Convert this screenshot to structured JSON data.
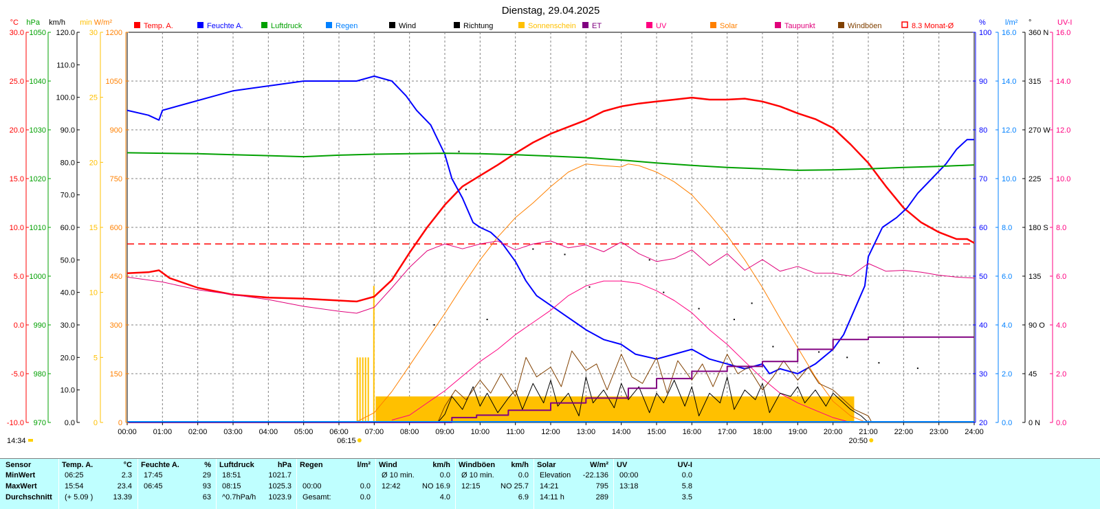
{
  "chart_data": {
    "type": "line",
    "title": "Dienstag, 29.04.2025",
    "x_ticks": [
      "00:00",
      "01:00",
      "02:00",
      "03:00",
      "04:00",
      "05:00",
      "06:00",
      "07:00",
      "08:00",
      "09:00",
      "10:00",
      "11:00",
      "12:00",
      "13:00",
      "14:00",
      "15:00",
      "16:00",
      "17:00",
      "18:00",
      "19:00",
      "20:00",
      "21:00",
      "22:00",
      "23:00",
      "24:00"
    ],
    "xlim": [
      0,
      24
    ],
    "grid": true,
    "legend_position": "top",
    "legend": [
      {
        "label": "Temp. A.",
        "color": "#ff0000",
        "marker": "box"
      },
      {
        "label": "Feuchte A.",
        "color": "#0000ff",
        "marker": "box"
      },
      {
        "label": "Luftdruck",
        "color": "#00a000",
        "marker": "box"
      },
      {
        "label": "Regen",
        "color": "#0080ff",
        "marker": "box"
      },
      {
        "label": "Wind",
        "color": "#000000",
        "marker": "box"
      },
      {
        "label": "Richtung",
        "color": "#000000",
        "marker": "box"
      },
      {
        "label": "Sonnenschein",
        "color": "#ffc000",
        "marker": "box"
      },
      {
        "label": "ET",
        "color": "#800080",
        "marker": "box"
      },
      {
        "label": "UV",
        "color": "#ff0080",
        "marker": "box"
      },
      {
        "label": "Solar",
        "color": "#ff8000",
        "marker": "box"
      },
      {
        "label": "Taupunkt",
        "color": "#e0007a",
        "marker": "box"
      },
      {
        "label": "Windböen",
        "color": "#804000",
        "marker": "box"
      },
      {
        "label": "8.3 Monat-Ø",
        "color": "#ff0000",
        "marker": "outline"
      }
    ],
    "axes": [
      {
        "id": "temp",
        "unit": "°C",
        "color": "#ff0000",
        "side": "left",
        "ticks": [
          "30.0",
          "25.0",
          "20.0",
          "15.0",
          "10.0",
          "5.0",
          "0.0",
          "-5.0",
          "-10.0"
        ]
      },
      {
        "id": "press",
        "unit": "hPa",
        "color": "#00a000",
        "side": "left",
        "ticks": [
          "1050",
          "1040",
          "1030",
          "1020",
          "1010",
          "1000",
          "990",
          "980",
          "970"
        ]
      },
      {
        "id": "wind",
        "unit": "km/h",
        "color": "#000000",
        "side": "left",
        "ticks": [
          "120.0",
          "110.0",
          "100.0",
          "90.0",
          "80.0",
          "70.0",
          "60.0",
          "50.0",
          "40.0",
          "30.0",
          "20.0",
          "10.0",
          "0.0"
        ]
      },
      {
        "id": "sun",
        "unit": "min",
        "color": "#ffc000",
        "side": "left",
        "ticks": [
          "30",
          "25",
          "20",
          "15",
          "10",
          "5",
          "0"
        ]
      },
      {
        "id": "solar",
        "unit": "W/m²",
        "color": "#ff8000",
        "side": "left",
        "ticks": [
          "1200",
          "1050",
          "900",
          "750",
          "600",
          "450",
          "300",
          "150",
          "0"
        ]
      },
      {
        "id": "hum",
        "unit": "%",
        "color": "#0000ff",
        "side": "right",
        "ticks": [
          "100",
          "90",
          "80",
          "70",
          "60",
          "50",
          "40",
          "30",
          "20"
        ]
      },
      {
        "id": "rain",
        "unit": "l/m²",
        "color": "#0080ff",
        "side": "right",
        "ticks": [
          "16.0",
          "14.0",
          "12.0",
          "10.0",
          "8.0",
          "6.0",
          "4.0",
          "2.0",
          "0.0"
        ]
      },
      {
        "id": "dir",
        "unit": "°",
        "color": "#000000",
        "side": "right",
        "ticks": [
          "360 N",
          "315",
          "270 W",
          "225",
          "180 S",
          "135",
          "90 O",
          "45",
          "0 N"
        ]
      },
      {
        "id": "uv",
        "unit": "UV-I",
        "color": "#ff0080",
        "side": "right",
        "ticks": [
          "16.0",
          "14.0",
          "12.0",
          "10.0",
          "8.0",
          "6.0",
          "4.0",
          "2.0",
          "0.0"
        ]
      }
    ],
    "series": [
      {
        "name": "Temp. A.",
        "axis": "temp",
        "color": "#ff0000",
        "width": 2.5,
        "x": [
          0,
          0.6,
          0.9,
          1.2,
          2,
          3,
          4,
          5,
          5.5,
          6,
          6.5,
          7,
          7.5,
          8,
          8.5,
          9,
          9.5,
          10,
          10.5,
          11,
          11.5,
          12,
          12.5,
          13,
          13.5,
          14,
          14.5,
          15,
          15.5,
          16,
          16.5,
          17,
          17.5,
          18,
          18.5,
          19,
          19.5,
          20,
          20.5,
          21,
          21.5,
          22,
          22.5,
          23,
          23.5,
          23.8,
          24
        ],
        "y": [
          5.3,
          5.4,
          5.6,
          4.8,
          3.8,
          3.1,
          2.8,
          2.7,
          2.6,
          2.5,
          2.4,
          2.9,
          4.6,
          7.4,
          10,
          12.3,
          14.2,
          15.3,
          16.4,
          17.6,
          18.7,
          19.6,
          20.3,
          21,
          21.9,
          22.4,
          22.7,
          22.9,
          23.1,
          23.3,
          23.1,
          23.1,
          23.2,
          22.9,
          22.4,
          21.7,
          21.1,
          20.2,
          18.5,
          16.6,
          14.2,
          12,
          10.5,
          9.5,
          8.8,
          8.8,
          8.4
        ]
      },
      {
        "name": "Feuchte A.",
        "axis": "hum",
        "color": "#0000ff",
        "width": 2,
        "x": [
          0,
          0.6,
          0.9,
          1,
          2,
          2.5,
          3,
          4,
          5,
          6,
          6.5,
          7,
          7.5,
          7.9,
          8.2,
          8.6,
          9,
          9.2,
          9.5,
          9.8,
          10,
          10.3,
          10.6,
          11,
          11.3,
          11.6,
          12,
          12.4,
          12.8,
          13,
          13.5,
          14,
          14.4,
          15,
          15.5,
          16,
          16.5,
          17,
          17.5,
          18,
          18.2,
          18.5,
          19,
          19.5,
          20,
          20.3,
          20.6,
          20.9,
          21,
          21.4,
          21.8,
          22.1,
          22.4,
          22.8,
          23.2,
          23.5,
          23.8,
          24
        ],
        "y": [
          84,
          83,
          82,
          84,
          86,
          87,
          88,
          89,
          90,
          90,
          90,
          91,
          90,
          87,
          84,
          81,
          75,
          70,
          66,
          61,
          60,
          59,
          57,
          53,
          49,
          46,
          44,
          42,
          40,
          39,
          37,
          36,
          34,
          33,
          34,
          35,
          33,
          32,
          31,
          32,
          30,
          31,
          30,
          32,
          35,
          38,
          43,
          48,
          54,
          60,
          62,
          64,
          67,
          70,
          73,
          76,
          78,
          78
        ]
      },
      {
        "name": "Luftdruck",
        "axis": "press",
        "color": "#00a000",
        "width": 2,
        "x": [
          0,
          1,
          2,
          3,
          4,
          5,
          6,
          7,
          8,
          9,
          10,
          11,
          12,
          13,
          14,
          15,
          16,
          17,
          18,
          19,
          20,
          21,
          22,
          23,
          24
        ],
        "y": [
          1025.3,
          1025.2,
          1025.1,
          1024.9,
          1024.7,
          1024.5,
          1024.8,
          1025,
          1025.1,
          1025.2,
          1025.1,
          1024.9,
          1024.6,
          1024.3,
          1023.8,
          1023.2,
          1022.7,
          1022.3,
          1022,
          1021.7,
          1021.8,
          1022,
          1022.3,
          1022.5,
          1022.8
        ]
      },
      {
        "name": "Solar",
        "axis": "solar",
        "color": "#ff8000",
        "width": 1,
        "x": [
          6.5,
          7,
          7.5,
          8,
          8.5,
          9,
          9.5,
          10,
          10.5,
          11,
          11.5,
          12,
          12.5,
          13,
          13.5,
          14,
          14.2,
          14.5,
          15,
          15.5,
          16,
          16.5,
          17,
          17.5,
          18,
          18.5,
          19,
          19.5,
          20,
          20.5,
          20.9
        ],
        "y": [
          2,
          30,
          95,
          175,
          255,
          335,
          420,
          500,
          570,
          630,
          675,
          725,
          770,
          795,
          790,
          786,
          795,
          790,
          770,
          740,
          700,
          640,
          575,
          500,
          415,
          320,
          230,
          140,
          65,
          20,
          2
        ]
      },
      {
        "name": "UV",
        "axis": "uv",
        "color": "#ff0080",
        "width": 1,
        "x": [
          7.5,
          8,
          8.5,
          9,
          9.5,
          10,
          10.5,
          11,
          11.5,
          12,
          12.5,
          13,
          13.5,
          14,
          14.5,
          15,
          15.5,
          16,
          16.5,
          17,
          17.5,
          18,
          18.5,
          19,
          19.5,
          20,
          20.5
        ],
        "y": [
          0.1,
          0.3,
          0.8,
          1.3,
          1.9,
          2.5,
          3,
          3.6,
          4.1,
          4.6,
          5.2,
          5.6,
          5.8,
          5.8,
          5.7,
          5.4,
          5,
          4.5,
          3.8,
          3.2,
          2.5,
          1.8,
          1.2,
          0.8,
          0.5,
          0.2,
          0
        ]
      },
      {
        "name": "Taupunkt",
        "axis": "temp",
        "color": "#e0007a",
        "width": 1,
        "x": [
          0,
          1,
          2,
          3,
          4,
          5,
          6,
          6.5,
          7,
          7.5,
          8,
          8.5,
          9,
          9.5,
          10,
          10.5,
          11,
          11.5,
          12,
          12.5,
          13,
          13.5,
          14,
          14.5,
          15,
          15.5,
          16,
          16.5,
          17,
          17.5,
          18,
          18.5,
          19,
          19.5,
          20,
          20.5,
          21,
          21.5,
          22,
          22.5,
          23,
          23.5,
          24
        ],
        "y": [
          4.9,
          4.4,
          3.6,
          3.1,
          2.6,
          1.9,
          1.4,
          1.2,
          1.8,
          3.8,
          5.9,
          7.6,
          8.3,
          7.8,
          8.3,
          8.6,
          7.7,
          8.3,
          8.6,
          7.9,
          8.2,
          7.5,
          8.5,
          7.3,
          6.5,
          6.8,
          7.7,
          6.1,
          7.3,
          5.6,
          6.7,
          5.5,
          6,
          5.3,
          5.3,
          5,
          6.3,
          5.5,
          5.6,
          5.4,
          5.1,
          4.9,
          4.8
        ]
      },
      {
        "name": "Wind",
        "axis": "wind",
        "color": "#000000",
        "width": 1,
        "x": [
          8.8,
          9,
          9.2,
          9.5,
          9.8,
          10,
          10.2,
          10.5,
          10.8,
          11,
          11.2,
          11.5,
          11.8,
          12,
          12.2,
          12.5,
          12.8,
          13,
          13.2,
          13.5,
          13.8,
          14,
          14.2,
          14.5,
          14.8,
          15,
          15.2,
          15.5,
          15.8,
          16,
          16.2,
          16.5,
          16.8,
          17,
          17.2,
          17.5,
          17.8,
          18,
          18.2,
          18.5,
          18.8,
          19,
          19.2,
          19.5,
          19.8,
          20,
          20.2,
          20.5,
          20.8,
          21
        ],
        "y": [
          0,
          2.5,
          8,
          4,
          11,
          5,
          9,
          3,
          7.5,
          10,
          4,
          12,
          6,
          13,
          5,
          9,
          2,
          14,
          6,
          10,
          4.5,
          12,
          7,
          11,
          3,
          9,
          6,
          13,
          5,
          11,
          2,
          9,
          6,
          14,
          4,
          10,
          7,
          12,
          3,
          9,
          8,
          11,
          6,
          10,
          5,
          9,
          7,
          4,
          2,
          0
        ]
      },
      {
        "name": "Windböen",
        "axis": "wind",
        "color": "#804000",
        "width": 1,
        "x": [
          8.8,
          9,
          9.3,
          9.6,
          10,
          10.3,
          10.6,
          11,
          11.3,
          11.6,
          12,
          12.3,
          12.6,
          13,
          13.3,
          13.6,
          14,
          14.3,
          14.6,
          15,
          15.3,
          15.6,
          16,
          16.3,
          16.6,
          17,
          17.3,
          17.6,
          18,
          18.3,
          18.6,
          19,
          19.3,
          19.6,
          20,
          20.3,
          20.6,
          21,
          21.1
        ],
        "y": [
          0,
          5,
          10,
          7,
          13,
          9,
          15,
          8,
          20,
          14,
          17,
          11,
          22,
          16,
          18,
          10,
          21,
          14,
          12,
          20,
          9,
          19,
          13,
          18,
          11,
          21,
          15,
          17,
          10,
          14,
          19,
          13,
          17,
          12,
          10,
          7,
          4,
          2,
          0
        ]
      },
      {
        "name": "ET",
        "axis": "rain",
        "color": "#800080",
        "width": 2,
        "step": true,
        "x": [
          0,
          7.9,
          9.2,
          9.9,
          10.8,
          12,
          13,
          14.2,
          15,
          16,
          17,
          18,
          19,
          20,
          21,
          22,
          23,
          24
        ],
        "y": [
          0,
          0,
          0.2,
          0.3,
          0.5,
          0.8,
          1,
          1.4,
          1.8,
          2.1,
          2.3,
          2.5,
          3,
          3.4,
          3.5,
          3.5,
          3.5,
          3.5
        ]
      }
    ],
    "sunshine_bars": [
      {
        "x_from": 6.5,
        "x_to": 6.88,
        "minutes": 5
      },
      {
        "x_from": 6.97,
        "x_to": 7.04,
        "minutes": 10.5
      },
      {
        "x_from": 7.04,
        "x_to": 20.6,
        "minutes": 2
      }
    ],
    "reference_line": {
      "label": "8.3 Monat-Ø",
      "axis": "temp",
      "value": 8.3,
      "color": "#ff0000"
    },
    "direction_points": [
      [
        8.7,
        90
      ],
      [
        9.4,
        250
      ],
      [
        9.6,
        215
      ],
      [
        10.2,
        95
      ],
      [
        11.5,
        160
      ],
      [
        12.4,
        155
      ],
      [
        13.1,
        125
      ],
      [
        14.8,
        150
      ],
      [
        15.2,
        120
      ],
      [
        16.2,
        105
      ],
      [
        17.2,
        95
      ],
      [
        17.7,
        110
      ],
      [
        18.3,
        70
      ],
      [
        19.6,
        65
      ],
      [
        20.4,
        60
      ],
      [
        21.3,
        55
      ],
      [
        22.4,
        50
      ]
    ],
    "sunrise": {
      "label": "06:15",
      "x": 6.25
    },
    "sunset": {
      "label": "20:50",
      "x": 20.83
    },
    "now_label": "14:34"
  },
  "stats": {
    "sensor_label": "Sensor",
    "row_labels": [
      "MinWert",
      "MaxWert",
      "Durchschnitt"
    ],
    "groups": [
      {
        "name": "Temp. A.",
        "unit": "°C",
        "cells": [
          [
            "06:25",
            "2.3"
          ],
          [
            "15:54",
            "23.4"
          ],
          [
            "(+ 5.09 )",
            "13.39"
          ]
        ]
      },
      {
        "name": "Feuchte A.",
        "unit": "%",
        "cells": [
          [
            "17:45",
            "29"
          ],
          [
            "06:45",
            "93"
          ],
          [
            "",
            "63"
          ]
        ]
      },
      {
        "name": "Luftdruck",
        "unit": "hPa",
        "cells": [
          [
            "18:51",
            "1021.7"
          ],
          [
            "08:15",
            "1025.3"
          ],
          [
            "^0.7hPa/h",
            "1023.9"
          ]
        ]
      },
      {
        "name": "Regen",
        "unit": "l/m²",
        "cells": [
          [
            "",
            ""
          ],
          [
            "00:00",
            "0.0"
          ],
          [
            "Gesamt:",
            "0.0"
          ]
        ]
      },
      {
        "name": "Wind",
        "unit": "km/h",
        "cells": [
          [
            "Ø 10 min.",
            "0.0"
          ],
          [
            "12:42",
            "NO 16.9"
          ],
          [
            "",
            "4.0"
          ]
        ]
      },
      {
        "name": "Windböen",
        "unit": "km/h",
        "cells": [
          [
            "Ø 10 min.",
            "0.0"
          ],
          [
            "12:15",
            "NO 25.7"
          ],
          [
            "",
            "6.9"
          ]
        ]
      },
      {
        "name": "Solar",
        "unit": "W/m²",
        "cells": [
          [
            "Elevation",
            "-22.136"
          ],
          [
            "14:21",
            "795"
          ],
          [
            "14:11 h",
            "289"
          ]
        ]
      },
      {
        "name": "UV",
        "unit": "UV-I",
        "cells": [
          [
            "00:00",
            "0.0"
          ],
          [
            "13:18",
            "5.8"
          ],
          [
            "",
            "3.5"
          ]
        ]
      }
    ]
  }
}
